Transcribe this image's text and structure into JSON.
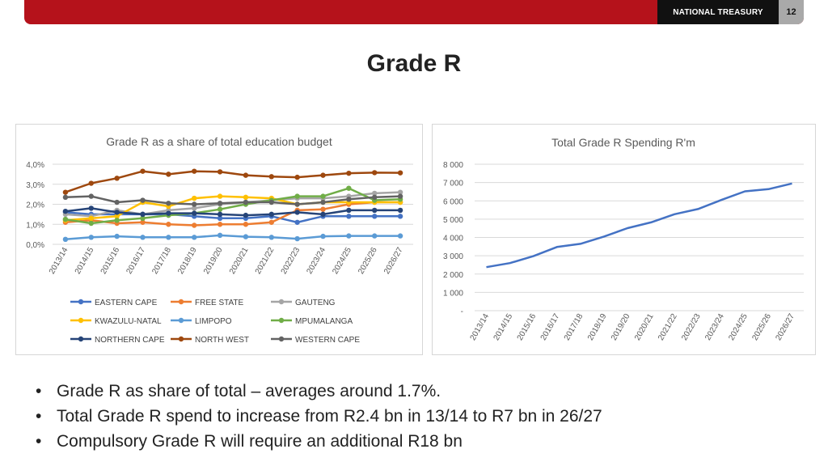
{
  "header": {
    "brand": "NATIONAL TREASURY",
    "page_number": "12",
    "accent_color": "#b5121b"
  },
  "slide": {
    "title": "Grade R"
  },
  "bullets": [
    "Grade R as share of total – averages around 1.7%.",
    " Total Grade R spend to increase from R2.4 bn in 13/14 to R7 bn in 26/27",
    "Compulsory Grade R will require an additional R18 bn"
  ],
  "chart_data": [
    {
      "type": "line",
      "title": "Grade R as a share of total education budget",
      "categories": [
        "2013/14",
        "2014/15",
        "2015/16",
        "2016/17",
        "2017/18",
        "2018/19",
        "2019/20",
        "2020/21",
        "2021/22",
        "2022/23",
        "2023/24",
        "2024/25",
        "2025/26",
        "2026/27"
      ],
      "ylim": [
        0,
        4
      ],
      "yticks": [
        0,
        1,
        2,
        3,
        4
      ],
      "ytick_labels": [
        "0,0%",
        "1,0%",
        "2,0%",
        "3,0%",
        "4,0%"
      ],
      "grid": true,
      "legend_position": "bottom",
      "series": [
        {
          "name": "EASTERN CAPE",
          "color": "#4472c4",
          "values": [
            1.6,
            1.5,
            1.5,
            1.5,
            1.5,
            1.4,
            1.3,
            1.3,
            1.4,
            1.1,
            1.4,
            1.4,
            1.4,
            1.4
          ]
        },
        {
          "name": "FREE STATE",
          "color": "#ed7d31",
          "values": [
            1.1,
            1.2,
            1.05,
            1.1,
            1.0,
            0.95,
            1.0,
            1.0,
            1.1,
            1.7,
            1.75,
            2.0,
            2.1,
            2.1
          ]
        },
        {
          "name": "GAUTENG",
          "color": "#a5a5a5",
          "values": [
            1.5,
            1.4,
            1.7,
            1.5,
            1.7,
            1.8,
            2.0,
            2.1,
            2.2,
            2.3,
            2.3,
            2.4,
            2.55,
            2.6
          ]
        },
        {
          "name": "KWAZULU-NATAL",
          "color": "#ffc000",
          "values": [
            1.2,
            1.3,
            1.4,
            2.1,
            1.9,
            2.3,
            2.4,
            2.35,
            2.3,
            2.0,
            2.1,
            2.1,
            2.1,
            2.1
          ]
        },
        {
          "name": "LIMPOPO",
          "color": "#5b9bd5",
          "values": [
            0.25,
            0.35,
            0.4,
            0.35,
            0.35,
            0.35,
            0.45,
            0.38,
            0.35,
            0.28,
            0.4,
            0.42,
            0.42,
            0.42
          ]
        },
        {
          "name": "MPUMALANGA",
          "color": "#70ad47",
          "values": [
            1.25,
            1.05,
            1.2,
            1.3,
            1.45,
            1.55,
            1.75,
            2.0,
            2.2,
            2.4,
            2.4,
            2.8,
            2.2,
            2.25
          ]
        },
        {
          "name": "NORTHERN CAPE",
          "color": "#264478",
          "values": [
            1.65,
            1.8,
            1.6,
            1.5,
            1.55,
            1.55,
            1.5,
            1.45,
            1.5,
            1.6,
            1.5,
            1.7,
            1.7,
            1.7
          ]
        },
        {
          "name": "NORTH WEST",
          "color": "#9e480e",
          "values": [
            2.6,
            3.05,
            3.3,
            3.65,
            3.5,
            3.65,
            3.62,
            3.45,
            3.38,
            3.35,
            3.45,
            3.55,
            3.58,
            3.57
          ]
        },
        {
          "name": "WESTERN CAPE",
          "color": "#636363",
          "values": [
            2.35,
            2.4,
            2.1,
            2.2,
            2.05,
            2.0,
            2.05,
            2.1,
            2.1,
            2.0,
            2.1,
            2.25,
            2.35,
            2.4
          ]
        }
      ]
    },
    {
      "type": "line",
      "title": "Total Grade R Spending R'm",
      "categories": [
        "2013/14",
        "2014/15",
        "2015/16",
        "2016/17",
        "2017/18",
        "2018/19",
        "2019/20",
        "2020/21",
        "2021/22",
        "2022/23",
        "2023/24",
        "2024/25",
        "2025/26",
        "2026/27"
      ],
      "ylim": [
        0,
        8000
      ],
      "yticks": [
        0,
        1000,
        2000,
        3000,
        4000,
        5000,
        6000,
        7000,
        8000
      ],
      "ytick_labels": [
        "-",
        "1 000",
        "2 000",
        "3 000",
        "4 000",
        "5 000",
        "6 000",
        "7 000",
        "8 000"
      ],
      "grid": true,
      "series": [
        {
          "color": "#4472c4",
          "values": [
            2380,
            2600,
            2980,
            3480,
            3650,
            4050,
            4510,
            4820,
            5270,
            5550,
            6050,
            6520,
            6640,
            6950
          ]
        }
      ]
    }
  ]
}
